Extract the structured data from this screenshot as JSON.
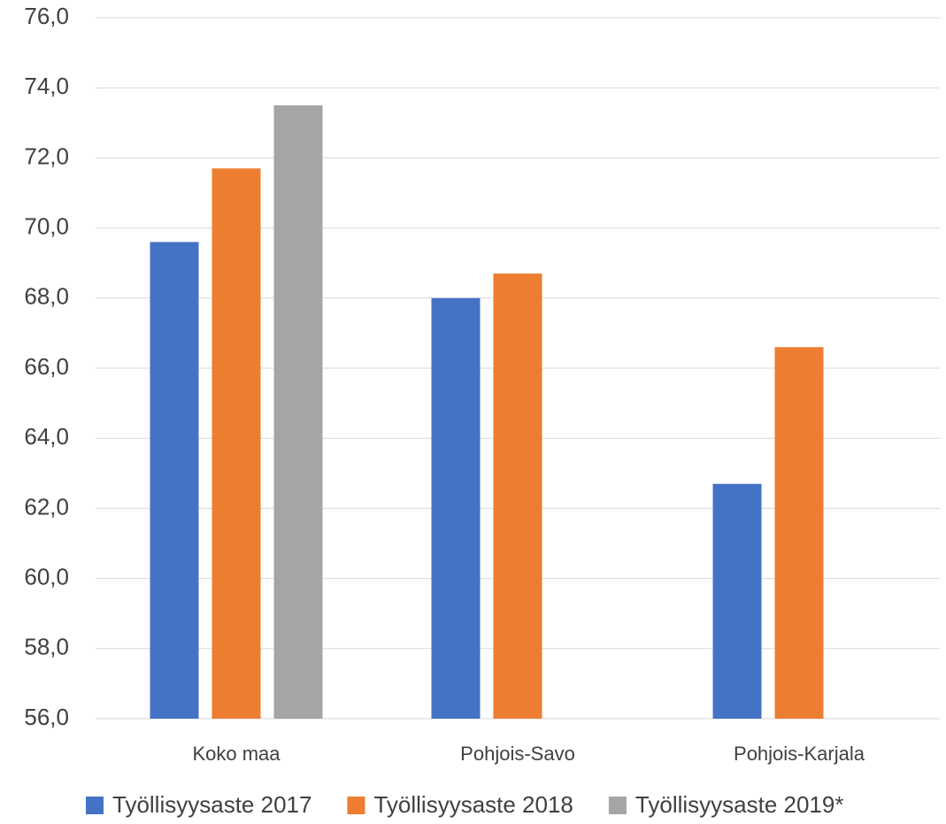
{
  "chart_data": {
    "type": "bar",
    "categories": [
      "Koko maa",
      "Pohjois-Savo",
      "Pohjois-Karjala"
    ],
    "series": [
      {
        "name": "Työllisyysaste 2017",
        "color": "#4472c4",
        "values": [
          69.6,
          68.0,
          62.7
        ]
      },
      {
        "name": "Työllisyysaste 2018",
        "color": "#ed7d31",
        "values": [
          71.7,
          68.7,
          66.6
        ]
      },
      {
        "name": "Työllisyysaste 2019*",
        "color": "#a5a5a5",
        "values": [
          73.5,
          null,
          null
        ]
      }
    ],
    "ylim": [
      56,
      76
    ],
    "yticks": [
      {
        "value": 56,
        "label": "56,0"
      },
      {
        "value": 58,
        "label": "58,0"
      },
      {
        "value": 60,
        "label": "60,0"
      },
      {
        "value": 62,
        "label": "62,0"
      },
      {
        "value": 64,
        "label": "64,0"
      },
      {
        "value": 66,
        "label": "66,0"
      },
      {
        "value": 68,
        "label": "68,0"
      },
      {
        "value": 70,
        "label": "70,0"
      },
      {
        "value": 72,
        "label": "72,0"
      },
      {
        "value": 74,
        "label": "74,0"
      },
      {
        "value": 76,
        "label": "76,0"
      }
    ],
    "grid": true,
    "legend": "bottom"
  }
}
